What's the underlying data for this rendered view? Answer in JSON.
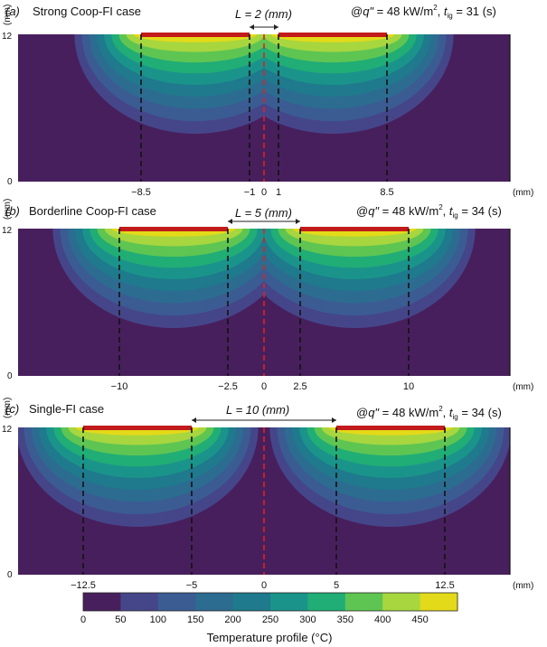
{
  "chart_data": [
    {
      "type": "heatmap",
      "panel_label": "(a)",
      "title": "Strong Coop-FI case",
      "gap_label": "L = 2 (mm)",
      "condition": {
        "q_value": "48",
        "q_unit": "kW/m",
        "t_ig": "31",
        "t_unit": "(s)"
      },
      "x_unit": "(mm)",
      "y_unit": "(mm)",
      "y_ticks": [
        "12",
        "0"
      ],
      "gap_half_mm": 1,
      "heater_outer_mm": 8.5,
      "marker_lines": [
        {
          "x": -8.5,
          "label": "-8.5"
        },
        {
          "x": -1,
          "label": "-1"
        },
        {
          "x": 0,
          "label": "0"
        },
        {
          "x": 1,
          "label": "1"
        },
        {
          "x": 8.5,
          "label": "8.5"
        }
      ]
    },
    {
      "type": "heatmap",
      "panel_label": "(b)",
      "title": "Borderline Coop-FI case",
      "gap_label": "L = 5 (mm)",
      "condition": {
        "q_value": "48",
        "q_unit": "kW/m",
        "t_ig": "34",
        "t_unit": "(s)"
      },
      "x_unit": "(mm)",
      "y_unit": "(mm)",
      "y_ticks": [
        "12",
        "0"
      ],
      "gap_half_mm": 2.5,
      "heater_outer_mm": 10,
      "marker_lines": [
        {
          "x": -10,
          "label": "-10"
        },
        {
          "x": -2.5,
          "label": "-2.5"
        },
        {
          "x": 0,
          "label": "0"
        },
        {
          "x": 2.5,
          "label": "2.5"
        },
        {
          "x": 10,
          "label": "10"
        }
      ]
    },
    {
      "type": "heatmap",
      "panel_label": "(c)",
      "title": "Single-FI case",
      "gap_label": "L = 10 (mm)",
      "condition": {
        "q_value": "48",
        "q_unit": "kW/m",
        "t_ig": "34",
        "t_unit": "(s)"
      },
      "x_unit": "(mm)",
      "y_unit": "(mm)",
      "y_ticks": [
        "12",
        "0"
      ],
      "gap_half_mm": 5,
      "heater_outer_mm": 12.5,
      "marker_lines": [
        {
          "x": -12.5,
          "label": "-12.5"
        },
        {
          "x": -5,
          "label": "-5"
        },
        {
          "x": 0,
          "label": "0"
        },
        {
          "x": 5,
          "label": "5"
        },
        {
          "x": 12.5,
          "label": "12.5"
        }
      ]
    }
  ],
  "domain_mm": [
    -17,
    17
  ],
  "depth_mm": [
    0,
    12
  ],
  "colorbar": {
    "label": "Temperature profile (°C)",
    "ticks": [
      "0",
      "50",
      "100",
      "150",
      "200",
      "250",
      "300",
      "350",
      "400",
      "450"
    ],
    "colors": [
      "#481f5d",
      "#45468a",
      "#3b5c93",
      "#2c6c90",
      "#1e7a8c",
      "#1a948a",
      "#21ad76",
      "#5ec552",
      "#a7d63f",
      "#e3da19"
    ]
  },
  "colors": {
    "heater": "#c21b1b",
    "marker": "#111111",
    "centerline": "#e02020",
    "text": "#111111"
  }
}
